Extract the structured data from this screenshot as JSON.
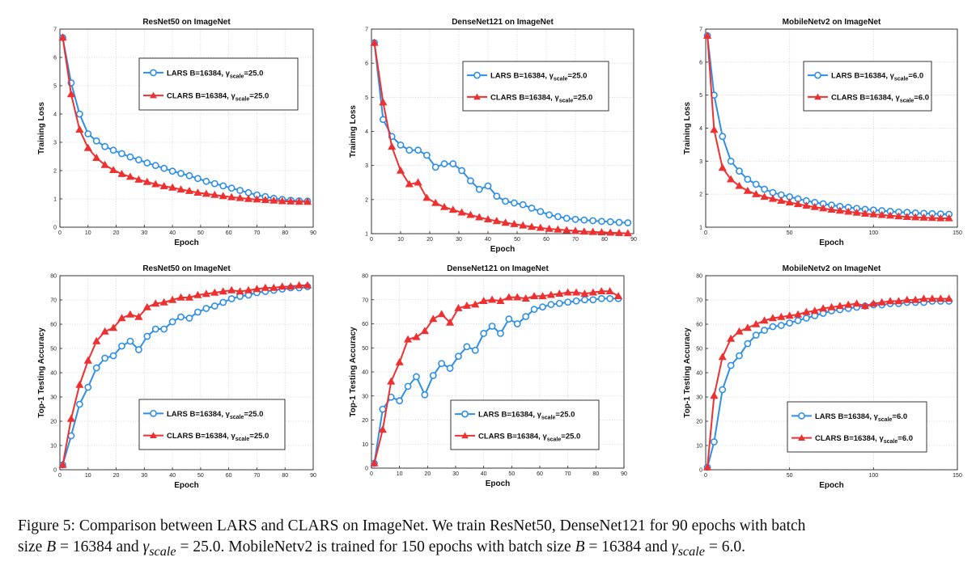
{
  "chart_data": [
    {
      "type": "line",
      "title": "ResNet50 on ImageNet",
      "xlabel": "Epoch",
      "ylabel": "Training Loss",
      "xlim": [
        0,
        90
      ],
      "ylim": [
        0,
        7
      ],
      "xticks": [
        0,
        10,
        20,
        30,
        40,
        50,
        60,
        70,
        80,
        90
      ],
      "yticks": [
        0,
        1,
        2,
        3,
        4,
        5,
        6,
        7
      ],
      "grid": true,
      "legend_position": "top-right",
      "x": [
        1,
        4,
        7,
        10,
        13,
        16,
        19,
        22,
        25,
        28,
        31,
        34,
        37,
        40,
        43,
        46,
        49,
        52,
        55,
        58,
        61,
        64,
        67,
        70,
        73,
        76,
        79,
        82,
        85,
        88
      ],
      "series": [
        {
          "name": "LARS B=16384, γscale=25.0",
          "label_main": "LARS B=16384, γ",
          "label_sub": "scale",
          "label_tail": "=25.0",
          "color": "#2f8fe6",
          "marker": "circle",
          "values": [
            6.7,
            5.1,
            4.0,
            3.3,
            3.05,
            2.85,
            2.72,
            2.6,
            2.48,
            2.38,
            2.27,
            2.18,
            2.08,
            1.98,
            1.9,
            1.82,
            1.72,
            1.62,
            1.54,
            1.46,
            1.38,
            1.3,
            1.22,
            1.14,
            1.08,
            1.02,
            0.98,
            0.95,
            0.93,
            0.92
          ]
        },
        {
          "name": "CLARS B=16384, γscale=25.0",
          "label_main": "CLARS B=16384, γ",
          "label_sub": "scale",
          "label_tail": "=25.0",
          "color": "#ee3030",
          "marker": "triangle",
          "values": [
            6.7,
            4.7,
            3.45,
            2.8,
            2.45,
            2.2,
            2.02,
            1.88,
            1.78,
            1.68,
            1.6,
            1.52,
            1.45,
            1.4,
            1.33,
            1.28,
            1.22,
            1.18,
            1.14,
            1.1,
            1.06,
            1.03,
            1.0,
            0.98,
            0.96,
            0.94,
            0.92,
            0.91,
            0.9,
            0.9
          ]
        }
      ]
    },
    {
      "type": "line",
      "title": "DenseNet121 on ImageNet",
      "xlabel": "Epoch",
      "ylabel": "Training Loss",
      "xlim": [
        0,
        90
      ],
      "ylim": [
        1,
        7
      ],
      "xticks": [
        0,
        10,
        20,
        30,
        40,
        50,
        60,
        70,
        80,
        90
      ],
      "yticks": [
        1,
        2,
        3,
        4,
        5,
        6,
        7
      ],
      "grid": true,
      "legend_position": "top-right",
      "x": [
        1,
        4,
        7,
        10,
        13,
        16,
        19,
        22,
        25,
        28,
        31,
        34,
        37,
        40,
        43,
        46,
        49,
        52,
        55,
        58,
        61,
        64,
        67,
        70,
        73,
        76,
        79,
        82,
        85,
        88
      ],
      "series": [
        {
          "name": "LARS B=16384, γscale=25.0",
          "label_main": "LARS B=16384, γ",
          "label_sub": "scale",
          "label_tail": "=25.0",
          "color": "#2f8fe6",
          "marker": "circle",
          "values": [
            6.6,
            4.35,
            3.85,
            3.6,
            3.45,
            3.45,
            3.3,
            2.95,
            3.05,
            3.05,
            2.85,
            2.55,
            2.3,
            2.4,
            2.1,
            1.95,
            1.9,
            1.85,
            1.75,
            1.65,
            1.55,
            1.5,
            1.45,
            1.42,
            1.4,
            1.38,
            1.36,
            1.35,
            1.33,
            1.32
          ]
        },
        {
          "name": "CLARS B=16384, γscale=25.0",
          "label_main": "CLARS B=16384, γ",
          "label_sub": "scale",
          "label_tail": "=25.0",
          "color": "#ee3030",
          "marker": "triangle",
          "values": [
            6.6,
            4.85,
            3.55,
            2.85,
            2.45,
            2.5,
            2.05,
            1.9,
            1.78,
            1.7,
            1.62,
            1.55,
            1.48,
            1.42,
            1.37,
            1.32,
            1.28,
            1.24,
            1.2,
            1.17,
            1.14,
            1.12,
            1.1,
            1.08,
            1.06,
            1.05,
            1.04,
            1.03,
            1.02,
            1.01
          ]
        }
      ]
    },
    {
      "type": "line",
      "title": "MobileNetv2 on ImageNet",
      "xlabel": "Epoch",
      "ylabel": "Training Loss",
      "xlim": [
        0,
        150
      ],
      "ylim": [
        1,
        7
      ],
      "xticks": [
        0,
        50,
        100,
        150
      ],
      "yticks": [
        1,
        2,
        3,
        4,
        5,
        6,
        7
      ],
      "grid": true,
      "legend_position": "top-right",
      "x": [
        1,
        5,
        10,
        15,
        20,
        25,
        30,
        35,
        40,
        45,
        50,
        55,
        60,
        65,
        70,
        75,
        80,
        85,
        90,
        95,
        100,
        105,
        110,
        115,
        120,
        125,
        130,
        135,
        140,
        145
      ],
      "series": [
        {
          "name": "LARS B=16384, γscale=6.0",
          "label_main": "LARS B=16384, γ",
          "label_sub": "scale",
          "label_tail": "=6.0",
          "color": "#2f8fe6",
          "marker": "circle",
          "values": [
            6.8,
            5.0,
            3.75,
            3.0,
            2.7,
            2.45,
            2.3,
            2.15,
            2.05,
            1.98,
            1.92,
            1.86,
            1.8,
            1.75,
            1.71,
            1.67,
            1.63,
            1.6,
            1.57,
            1.54,
            1.52,
            1.5,
            1.48,
            1.46,
            1.45,
            1.43,
            1.42,
            1.41,
            1.4,
            1.39
          ]
        },
        {
          "name": "CLARS B=16384, γscale=6.0",
          "label_main": "CLARS B=16384, γ",
          "label_sub": "scale",
          "label_tail": "=6.0",
          "color": "#ee3030",
          "marker": "triangle",
          "values": [
            6.8,
            3.95,
            2.8,
            2.45,
            2.25,
            2.1,
            2.0,
            1.92,
            1.86,
            1.8,
            1.75,
            1.7,
            1.65,
            1.61,
            1.57,
            1.53,
            1.5,
            1.47,
            1.44,
            1.41,
            1.39,
            1.37,
            1.35,
            1.33,
            1.31,
            1.3,
            1.29,
            1.28,
            1.27,
            1.27
          ]
        }
      ]
    },
    {
      "type": "line",
      "title": "ResNet50 on ImageNet",
      "xlabel": "Epoch",
      "ylabel": "Top-1 Testing Accuracy",
      "xlim": [
        0,
        90
      ],
      "ylim": [
        0,
        80
      ],
      "xticks": [
        0,
        10,
        20,
        30,
        40,
        50,
        60,
        70,
        80,
        90
      ],
      "yticks": [
        0,
        10,
        20,
        30,
        40,
        50,
        60,
        70,
        80
      ],
      "grid": true,
      "legend_position": "bottom-right",
      "x": [
        1,
        4,
        7,
        10,
        13,
        16,
        19,
        22,
        25,
        28,
        31,
        34,
        37,
        40,
        43,
        46,
        49,
        52,
        55,
        58,
        61,
        64,
        67,
        70,
        73,
        76,
        79,
        82,
        85,
        88
      ],
      "series": [
        {
          "name": "LARS B=16384, γscale=25.0",
          "label_main": "LARS B=16384, γ",
          "label_sub": "scale",
          "label_tail": "=25.0",
          "color": "#2f8fe6",
          "marker": "circle",
          "values": [
            2,
            14,
            27,
            34,
            42,
            46,
            47,
            51,
            53,
            49.5,
            55,
            58,
            58,
            61,
            63,
            62.5,
            65,
            66.5,
            67.5,
            69,
            70.5,
            71.5,
            72,
            73,
            73.5,
            74,
            74.5,
            75,
            75,
            75.5
          ]
        },
        {
          "name": "CLARS B=16384, γscale=25.0",
          "label_main": "CLARS B=16384, γ",
          "label_sub": "scale",
          "label_tail": "=25.0",
          "color": "#ee3030",
          "marker": "triangle",
          "values": [
            2,
            21,
            35,
            45,
            53,
            57,
            58.5,
            62.5,
            64,
            63,
            67,
            68.5,
            69,
            70,
            71,
            71,
            72,
            72.5,
            73,
            73.5,
            74,
            73.5,
            74,
            74.5,
            75,
            75,
            75.5,
            75.5,
            76,
            76
          ]
        }
      ]
    },
    {
      "type": "line",
      "title": "DenseNet121 on ImageNet",
      "xlabel": "Epoch",
      "ylabel": "Top-1 Testing Accuracy",
      "xlim": [
        0,
        90
      ],
      "ylim": [
        0,
        80
      ],
      "xticks": [
        0,
        10,
        20,
        30,
        40,
        50,
        60,
        70,
        80,
        90
      ],
      "yticks": [
        0,
        10,
        20,
        30,
        40,
        50,
        60,
        70,
        80
      ],
      "grid": true,
      "legend_position": "bottom-right",
      "x": [
        1,
        4,
        7,
        10,
        13,
        16,
        19,
        22,
        25,
        28,
        31,
        34,
        37,
        40,
        43,
        46,
        49,
        52,
        55,
        58,
        61,
        64,
        67,
        70,
        73,
        76,
        79,
        82,
        85,
        88
      ],
      "series": [
        {
          "name": "LARS B=16384, γscale=25.0",
          "label_main": "LARS B=16384, γ",
          "label_sub": "scale",
          "label_tail": "=25.0",
          "color": "#2f8fe6",
          "marker": "circle",
          "values": [
            2,
            24.5,
            29.5,
            28,
            34,
            38,
            30.5,
            38.5,
            43.5,
            41.5,
            46.5,
            50.5,
            49,
            56,
            59,
            56,
            62,
            60,
            63,
            66,
            67,
            68,
            68.5,
            69,
            69.5,
            70,
            70,
            70.5,
            70.5,
            70.5
          ]
        },
        {
          "name": "CLARS B=16384, γscale=25.0",
          "label_main": "CLARS B=16384, γ",
          "label_sub": "scale",
          "label_tail": "=25.0",
          "color": "#ee3030",
          "marker": "triangle",
          "values": [
            2,
            16,
            36,
            44,
            53.5,
            54.5,
            57,
            62,
            64,
            60.5,
            66.5,
            67.5,
            68,
            69.5,
            70,
            69.5,
            71,
            71,
            70.5,
            71.5,
            71.5,
            72,
            72.5,
            73,
            73,
            72.5,
            73,
            73.5,
            73.5,
            71.5
          ]
        }
      ]
    },
    {
      "type": "line",
      "title": "MobileNetv2 on ImageNet",
      "xlabel": "Epoch",
      "ylabel": "Top-1 Testing Accuracy",
      "xlim": [
        0,
        150
      ],
      "ylim": [
        0,
        80
      ],
      "xticks": [
        0,
        50,
        100,
        150
      ],
      "yticks": [
        0,
        10,
        20,
        30,
        40,
        50,
        60,
        70,
        80
      ],
      "grid": true,
      "legend_position": "bottom-right",
      "x": [
        1,
        5,
        10,
        15,
        20,
        25,
        30,
        35,
        40,
        45,
        50,
        55,
        60,
        65,
        70,
        75,
        80,
        85,
        90,
        95,
        100,
        105,
        110,
        115,
        120,
        125,
        130,
        135,
        140,
        145
      ],
      "series": [
        {
          "name": "LARS B=16384, γscale=6.0",
          "label_main": "LARS B=16384, γ",
          "label_sub": "scale",
          "label_tail": "=6.0",
          "color": "#2f8fe6",
          "marker": "circle",
          "values": [
            1,
            11.5,
            33,
            43,
            47,
            52,
            55.5,
            57.5,
            59,
            59.5,
            60.5,
            61.5,
            62.5,
            63.5,
            64.5,
            65.5,
            66,
            66.5,
            67,
            67.5,
            68,
            68,
            68.5,
            68.5,
            69,
            69,
            69,
            69.5,
            69.5,
            69.5
          ]
        },
        {
          "name": "CLARS B=16384, γscale=6.0",
          "label_main": "CLARS B=16384, γ",
          "label_sub": "scale",
          "label_tail": "=6.0",
          "color": "#ee3030",
          "marker": "triangle",
          "values": [
            1,
            30.5,
            46.5,
            54,
            57,
            58.5,
            60,
            61.5,
            62.5,
            63,
            63.5,
            64,
            65,
            65.5,
            66.5,
            67,
            67.5,
            68,
            68.5,
            67.5,
            68.5,
            69,
            69.5,
            69.5,
            70,
            70,
            70.5,
            70.5,
            70.5,
            70.5
          ]
        }
      ]
    }
  ],
  "caption": {
    "line1_a": "Figure 5: Comparison between LARS and CLARS on ImageNet. We train ResNet50, DenseNet121 for 90 epochs with batch",
    "line2_a": "size ",
    "B_var": "B",
    "eq_16384_a": " = 16384",
    "line2_b": " and ",
    "gamma": "γ",
    "scale_sub": "scale",
    "eq_25": " = 25.0",
    "line2_c": ". MobileNetv2 is trained for 150 epochs with batch size ",
    "eq_16384_b": " = 16384",
    "line2_d": " and ",
    "eq_6": " = 6.0",
    "line2_e": "."
  }
}
